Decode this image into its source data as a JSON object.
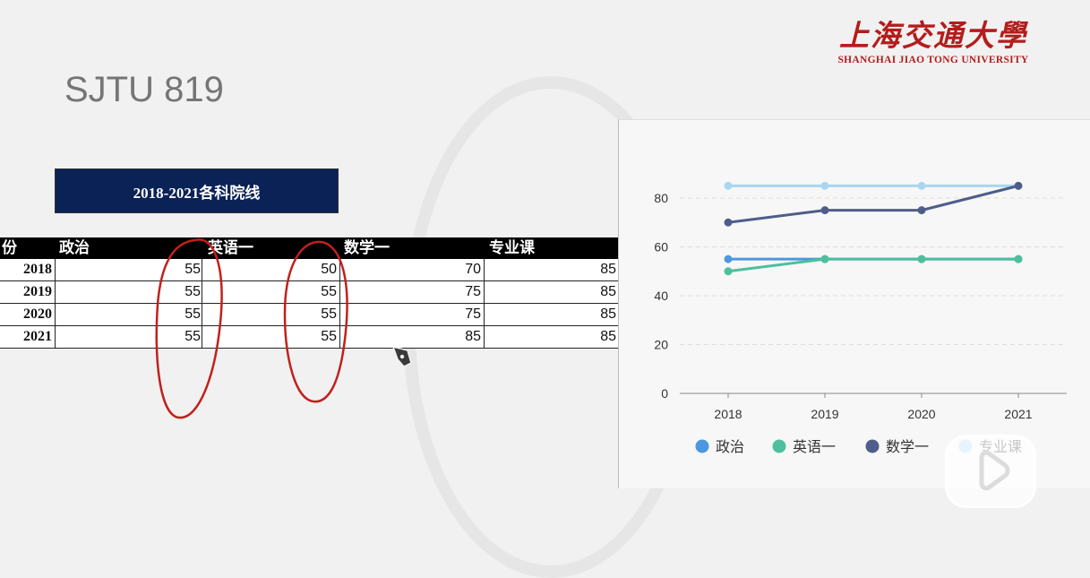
{
  "slide": {
    "title": "SJTU 819"
  },
  "logo": {
    "name_cn": "上海交通大學",
    "name_en": "SHANGHAI JIAO TONG UNIVERSITY"
  },
  "table": {
    "caption": "2018-2021各科院线",
    "headers": [
      "份",
      "政治",
      "英语一",
      "数学一",
      "专业课"
    ],
    "rows": [
      [
        "2018",
        "55",
        "50",
        "70",
        "85"
      ],
      [
        "2019",
        "55",
        "55",
        "75",
        "85"
      ],
      [
        "2020",
        "55",
        "55",
        "75",
        "85"
      ],
      [
        "2021",
        "55",
        "55",
        "85",
        "85"
      ]
    ]
  },
  "chart_data": {
    "type": "line",
    "categories": [
      "2018",
      "2019",
      "2020",
      "2021"
    ],
    "series": [
      {
        "name": "政治",
        "values": [
          55,
          55,
          55,
          55
        ],
        "color": "#4c97df"
      },
      {
        "name": "英语一",
        "values": [
          50,
          55,
          55,
          55
        ],
        "color": "#4dbf9c"
      },
      {
        "name": "数学一",
        "values": [
          70,
          75,
          75,
          85
        ],
        "color": "#4f5d8a"
      },
      {
        "name": "专业课",
        "values": [
          85,
          85,
          85,
          85
        ],
        "color": "#a9d6f0"
      }
    ],
    "yticks": [
      0,
      20,
      40,
      60,
      80
    ],
    "ylim": [
      0,
      90
    ],
    "grid": true,
    "legend": "bottom"
  },
  "colors": {
    "header_bg": "#000000",
    "caption_bg": "#0b2257",
    "logo_red": "#b51c1c",
    "annotation_red": "#c0211c"
  },
  "icons": {
    "pen": "pen-cursor-icon",
    "play": "play-icon"
  }
}
